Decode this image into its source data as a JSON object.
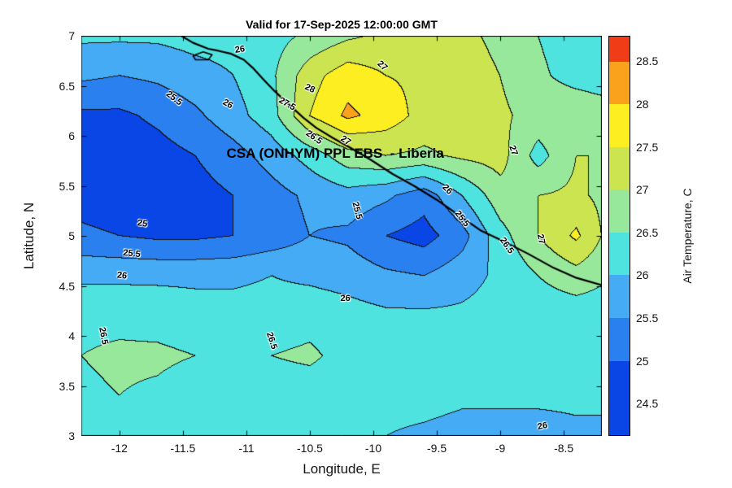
{
  "chart_data": {
    "type": "heatmap",
    "subtype": "filled_contour_map",
    "title": "Valid for 17-Sep-2025 12:00:00 GMT",
    "xlabel": "Longitude, E",
    "ylabel": "Latitude, N",
    "xlim": [
      -12.3,
      -8.2
    ],
    "ylim": [
      3,
      7
    ],
    "xticks": [
      -12,
      -11.5,
      -11,
      -10.5,
      -10,
      -9.5,
      -9,
      -8.5
    ],
    "yticks": [
      3,
      3.5,
      4,
      4.5,
      5,
      5.5,
      6,
      6.5,
      7
    ],
    "grid_x": [
      -12.3,
      -12.0,
      -11.7,
      -11.4,
      -11.1,
      -10.8,
      -10.5,
      -10.2,
      -9.9,
      -9.6,
      -9.3,
      -9.0,
      -8.7,
      -8.4,
      -8.2
    ],
    "grid_y": [
      7.0,
      6.6,
      6.2,
      5.8,
      5.4,
      5.0,
      4.6,
      4.2,
      3.8,
      3.4,
      3.0
    ],
    "values": [
      [
        26.1,
        26.1,
        26.1,
        26.2,
        26.2,
        26.3,
        26.6,
        26.9,
        27.1,
        27.2,
        27.1,
        26.9,
        26.5,
        26.2,
        26.1
      ],
      [
        25.6,
        25.5,
        25.6,
        25.8,
        26.0,
        26.4,
        27.3,
        27.8,
        27.5,
        27.4,
        27.2,
        27.0,
        26.6,
        26.3,
        26.2
      ],
      [
        24.9,
        24.9,
        25.1,
        25.4,
        25.8,
        26.3,
        27.5,
        28.1,
        27.8,
        27.3,
        27.3,
        27.1,
        26.8,
        26.9,
        26.8
      ],
      [
        24.8,
        24.7,
        24.8,
        25.0,
        25.3,
        25.7,
        26.2,
        26.8,
        27.0,
        26.9,
        27.1,
        27.2,
        26.3,
        27.0,
        27.0
      ],
      [
        24.8,
        24.7,
        24.7,
        24.8,
        25.0,
        25.3,
        25.6,
        25.8,
        25.6,
        25.2,
        26.0,
        26.8,
        27.0,
        27.1,
        26.9
      ],
      [
        25.1,
        25.0,
        24.9,
        24.9,
        25.0,
        25.2,
        25.5,
        25.4,
        25.0,
        24.8,
        25.3,
        26.3,
        27.0,
        27.6,
        27.0
      ],
      [
        25.9,
        25.9,
        25.9,
        25.9,
        25.9,
        26.0,
        25.9,
        25.8,
        25.6,
        25.5,
        25.8,
        26.1,
        26.5,
        26.8,
        26.6
      ],
      [
        26.35,
        26.35,
        26.3,
        26.2,
        26.2,
        26.2,
        26.3,
        26.2,
        26.1,
        26.1,
        26.1,
        26.2,
        26.2,
        26.2,
        26.2
      ],
      [
        26.5,
        26.6,
        26.6,
        26.5,
        26.3,
        26.5,
        26.6,
        26.3,
        26.2,
        26.2,
        26.2,
        26.2,
        26.2,
        26.2,
        26.2
      ],
      [
        26.4,
        26.5,
        26.4,
        26.2,
        26.2,
        26.2,
        26.2,
        26.2,
        26.2,
        26.2,
        26.1,
        26.1,
        26.1,
        26.1,
        26.1
      ],
      [
        26.2,
        26.2,
        26.2,
        26.2,
        26.1,
        26.1,
        26.1,
        26.1,
        26.0,
        25.9,
        25.8,
        25.8,
        25.8,
        25.9,
        25.9
      ]
    ],
    "band_start": 24.5,
    "contour_interval": 0.5,
    "band_colors": [
      "#0a46e6",
      "#2b80f0",
      "#45abf5",
      "#4fe3e0",
      "#98e89c",
      "#cbe44f",
      "#fdee22",
      "#fba21c"
    ],
    "contour_line_color": "#141414",
    "overlay_label": "CSA (ONHYM) PPL EBS  - Liberia",
    "overlay_pos": [
      -10.3,
      5.82
    ],
    "contour_labels": [
      {
        "t": "26",
        "x": -11.05,
        "y": 6.86,
        "r": -8
      },
      {
        "t": "25.5",
        "x": -11.57,
        "y": 6.37,
        "r": 38
      },
      {
        "t": "26",
        "x": -11.15,
        "y": 6.32,
        "r": 30
      },
      {
        "t": "28",
        "x": -10.5,
        "y": 6.47,
        "r": 25
      },
      {
        "t": "27.5",
        "x": -10.68,
        "y": 6.32,
        "r": 30
      },
      {
        "t": "27",
        "x": -9.93,
        "y": 6.7,
        "r": 42
      },
      {
        "t": "26.5",
        "x": -10.47,
        "y": 5.98,
        "r": 35
      },
      {
        "t": "27",
        "x": -10.22,
        "y": 5.95,
        "r": 33
      },
      {
        "t": "27",
        "x": -8.9,
        "y": 5.85,
        "r": 70
      },
      {
        "t": "25",
        "x": -11.82,
        "y": 5.12,
        "r": 8
      },
      {
        "t": "25.5",
        "x": -10.13,
        "y": 5.25,
        "r": 75
      },
      {
        "t": "26",
        "x": -9.42,
        "y": 5.46,
        "r": 45
      },
      {
        "t": "25.5",
        "x": -9.3,
        "y": 5.17,
        "r": 52
      },
      {
        "t": "26.5",
        "x": -8.95,
        "y": 4.9,
        "r": 55
      },
      {
        "t": "27",
        "x": -8.68,
        "y": 4.97,
        "r": 78
      },
      {
        "t": "25.5",
        "x": -11.9,
        "y": 4.82,
        "r": 6
      },
      {
        "t": "26",
        "x": -11.98,
        "y": 4.6,
        "r": 6
      },
      {
        "t": "26",
        "x": -10.22,
        "y": 4.37,
        "r": 0
      },
      {
        "t": "26.5",
        "x": -12.13,
        "y": 4.0,
        "r": 80
      },
      {
        "t": "26.5",
        "x": -10.8,
        "y": 3.95,
        "r": 72
      },
      {
        "t": "26",
        "x": -8.67,
        "y": 3.1,
        "r": -10
      }
    ],
    "coastline": [
      [
        -11.54,
        7.02
      ],
      [
        -11.42,
        6.93
      ],
      [
        -11.3,
        6.87
      ],
      [
        -11.22,
        6.85
      ],
      [
        -11.12,
        6.82
      ],
      [
        -11.02,
        6.76
      ],
      [
        -10.95,
        6.68
      ],
      [
        -10.87,
        6.57
      ],
      [
        -10.78,
        6.45
      ],
      [
        -10.68,
        6.33
      ],
      [
        -10.55,
        6.18
      ],
      [
        -10.45,
        6.08
      ],
      [
        -10.32,
        5.98
      ],
      [
        -10.18,
        5.88
      ],
      [
        -10.02,
        5.76
      ],
      [
        -9.85,
        5.62
      ],
      [
        -9.68,
        5.5
      ],
      [
        -9.5,
        5.36
      ],
      [
        -9.32,
        5.2
      ],
      [
        -9.15,
        5.05
      ],
      [
        -8.98,
        4.95
      ],
      [
        -8.78,
        4.82
      ],
      [
        -8.58,
        4.68
      ],
      [
        -8.4,
        4.58
      ],
      [
        -8.18,
        4.5
      ]
    ],
    "island": [
      [
        -11.42,
        6.8
      ],
      [
        -11.34,
        6.84
      ],
      [
        -11.27,
        6.81
      ],
      [
        -11.3,
        6.76
      ],
      [
        -11.4,
        6.76
      ],
      [
        -11.42,
        6.8
      ]
    ],
    "colorbar": {
      "label": "Air Temperature, C",
      "ticks": [
        24.5,
        25,
        25.5,
        26,
        26.5,
        27,
        27.5,
        28,
        28.5
      ],
      "min": 24.13,
      "max": 28.79,
      "boundaries": [
        24.13,
        25,
        25.5,
        26,
        26.5,
        27,
        27.5,
        28,
        28.5,
        28.79
      ],
      "colors": [
        "#0a46e6",
        "#2b80f0",
        "#45abf5",
        "#4fe3e0",
        "#98e89c",
        "#cbe44f",
        "#fdee22",
        "#fba21c",
        "#f03d17"
      ]
    }
  }
}
